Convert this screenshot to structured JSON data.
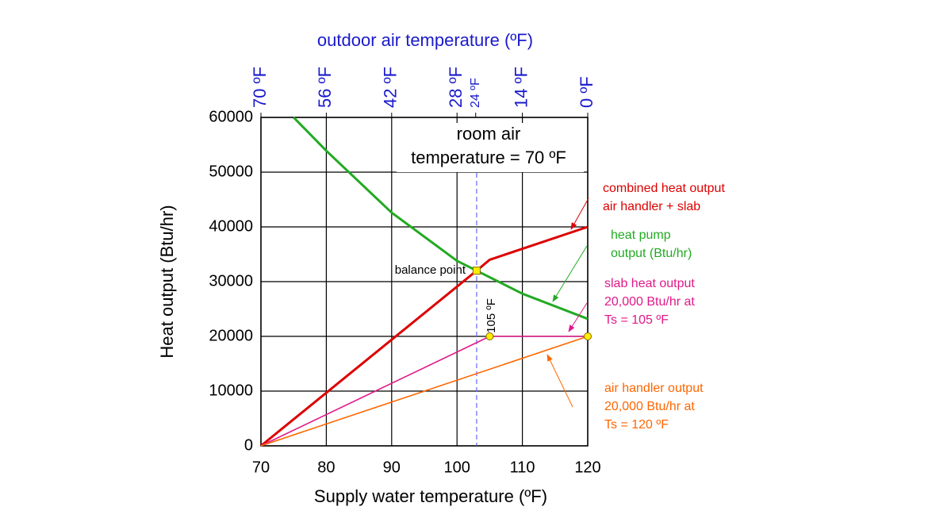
{
  "chart_data": {
    "type": "line",
    "xlabel": "Supply water temperature (ºF)",
    "ylabel": "Heat output (Btu/hr)",
    "x2label": "outdoor air temperature (ºF)",
    "xlim": [
      70,
      120
    ],
    "xticks": [
      70,
      80,
      90,
      100,
      110,
      120
    ],
    "ylim": [
      0,
      60000
    ],
    "yticks": [
      0,
      10000,
      20000,
      30000,
      40000,
      50000,
      60000
    ],
    "x2lim": [
      70,
      0
    ],
    "x2ticks": [
      {
        "value": 70,
        "label": "70 ºF"
      },
      {
        "value": 56,
        "label": "56 ºF"
      },
      {
        "value": 42,
        "label": "42 ºF"
      },
      {
        "value": 28,
        "label": "28 ºF"
      },
      {
        "value": 24,
        "label": "24 ºF"
      },
      {
        "value": 14,
        "label": "14 ºF"
      },
      {
        "value": 0,
        "label": "0 ºF"
      }
    ],
    "grid": true,
    "series": [
      {
        "label": [
          "heat pump",
          "output (Btu/hr)"
        ],
        "color": "#22aa22",
        "x": [
          75,
          80,
          90,
          100,
          103,
          110,
          120
        ],
        "values": [
          60000,
          53900,
          42600,
          33800,
          32000,
          27800,
          23200
        ]
      },
      {
        "label": [
          "combined heat output",
          "air handler + slab"
        ],
        "color": "#dd0000",
        "x": [
          70,
          103,
          105,
          120
        ],
        "values": [
          0,
          32000,
          34000,
          40000
        ]
      },
      {
        "label": [
          "slab heat output",
          "20,000 Btu/hr at",
          "Ts = 105 ºF"
        ],
        "color": "#e0198a",
        "x": [
          70,
          105,
          120
        ],
        "values": [
          0,
          20000,
          20000
        ]
      },
      {
        "label": [
          "air handler output",
          "20,000 Btu/hr at",
          "Ts = 120 ºF"
        ],
        "color": "#ff6600",
        "x": [
          70,
          120
        ],
        "values": [
          0,
          20000
        ]
      }
    ],
    "balance_line_x": 103,
    "markers": [
      {
        "x": 103,
        "y": 32000,
        "shape": "square"
      },
      {
        "x": 105,
        "y": 20000,
        "shape": "circle"
      },
      {
        "x": 120,
        "y": 20000,
        "shape": "circle"
      }
    ],
    "annotations": [
      [
        "room air",
        "temperature = 70 ºF"
      ],
      [
        "balance point"
      ],
      [
        "105 ºF"
      ]
    ]
  }
}
